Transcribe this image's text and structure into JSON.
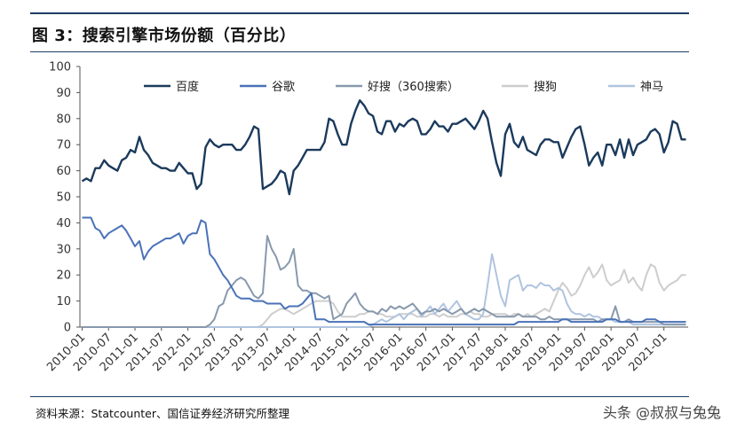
{
  "figure": {
    "title": "图 3：搜索引擎市场份额（百分比）",
    "source": "资料来源：Statcounter、国信证券经济研究所整理",
    "watermark": "头条 @叔叔与兔兔"
  },
  "chart_data": {
    "type": "line",
    "ylim": [
      0,
      100
    ],
    "yticks": [
      0,
      10,
      20,
      30,
      40,
      50,
      60,
      70,
      80,
      90,
      100
    ],
    "x_start": "2010-01",
    "x_end": "2021-06",
    "xtick_labels": [
      "2010-01",
      "2010-07",
      "2011-01",
      "2011-07",
      "2012-01",
      "2012-07",
      "2013-01",
      "2013-07",
      "2014-01",
      "2014-07",
      "2015-01",
      "2015-07",
      "2016-01",
      "2016-07",
      "2017-01",
      "2017-07",
      "2018-01",
      "2018-07",
      "2019-01",
      "2019-07",
      "2020-01",
      "2020-07",
      "2021-01"
    ],
    "legend_position": "top",
    "grid": false,
    "series": [
      {
        "name": "百度",
        "color": "#1b3a5c",
        "values": [
          56,
          57,
          56,
          61,
          61,
          64,
          62,
          61,
          60,
          64,
          65,
          68,
          67,
          73,
          68,
          66,
          63,
          62,
          61,
          61,
          60,
          60,
          63,
          61,
          59,
          59,
          53,
          55,
          69,
          72,
          70,
          69,
          70,
          70,
          70,
          68,
          68,
          70,
          73,
          77,
          76,
          53,
          54,
          55,
          57,
          60,
          59,
          51,
          60,
          62,
          65,
          68,
          68,
          68,
          68,
          71,
          80,
          79,
          74,
          70,
          70,
          78,
          83,
          87,
          85,
          82,
          81,
          75,
          74,
          79,
          79,
          75,
          78,
          77,
          79,
          80,
          79,
          74,
          74,
          76,
          79,
          77,
          77,
          75,
          78,
          78,
          79,
          80,
          78,
          76,
          79,
          83,
          80,
          71,
          63,
          58,
          74,
          78,
          71,
          69,
          73,
          68,
          67,
          66,
          70,
          72,
          72,
          71,
          71,
          65,
          69,
          73,
          76,
          77,
          70,
          62,
          65,
          67,
          62,
          70,
          70,
          66,
          72,
          65,
          72,
          66,
          70,
          71,
          72,
          75,
          76,
          74,
          67,
          71,
          79,
          78,
          72,
          72
        ]
      },
      {
        "name": "谷歌",
        "color": "#4a72b8",
        "values": [
          42,
          42,
          42,
          38,
          37,
          34,
          36,
          37,
          38,
          39,
          37,
          34,
          31,
          33,
          26,
          29,
          31,
          32,
          33,
          34,
          34,
          35,
          36,
          32,
          35,
          36,
          36,
          41,
          40,
          28,
          26,
          23,
          20,
          18,
          15,
          12,
          11,
          11,
          11,
          10,
          10,
          10,
          9,
          9,
          9,
          9,
          7,
          8,
          8,
          8,
          9,
          11,
          13,
          3,
          3,
          3,
          2,
          2,
          2,
          2,
          2,
          2,
          2,
          2,
          2,
          1,
          1,
          1,
          1,
          1,
          1,
          1,
          1,
          1,
          1,
          1,
          1,
          1,
          1,
          1,
          1,
          1,
          1,
          1,
          1,
          1,
          1,
          1,
          1,
          1,
          1,
          1,
          1,
          1,
          1,
          1,
          1,
          1,
          1,
          2,
          2,
          2,
          2,
          2,
          2,
          2,
          2,
          2,
          2,
          3,
          3,
          2,
          2,
          2,
          2,
          2,
          2,
          2,
          2,
          3,
          3,
          3,
          2,
          2,
          2,
          2,
          2,
          2,
          3,
          3,
          3,
          2,
          2,
          2,
          2,
          2,
          2,
          2
        ]
      },
      {
        "name": "好搜（360搜索）",
        "color": "#8899ad",
        "values": [
          0,
          0,
          0,
          0,
          0,
          0,
          0,
          0,
          0,
          0,
          0,
          0,
          0,
          0,
          0,
          0,
          0,
          0,
          0,
          0,
          0,
          0,
          0,
          0,
          0,
          0,
          0,
          0,
          0,
          1,
          3,
          8,
          9,
          14,
          16,
          18,
          19,
          18,
          15,
          12,
          11,
          13,
          35,
          30,
          27,
          22,
          23,
          25,
          30,
          16,
          14,
          14,
          13,
          13,
          12,
          11,
          12,
          3,
          4,
          5,
          9,
          11,
          13,
          9,
          7,
          6,
          6,
          5,
          7,
          6,
          8,
          7,
          8,
          7,
          8,
          9,
          7,
          5,
          6,
          6,
          7,
          6,
          7,
          6,
          5,
          6,
          7,
          5,
          6,
          7,
          6,
          7,
          6,
          5,
          4,
          4,
          4,
          4,
          4,
          5,
          4,
          4,
          4,
          4,
          3,
          3,
          4,
          3,
          3,
          3,
          3,
          3,
          3,
          3,
          3,
          3,
          3,
          2,
          3,
          3,
          3,
          8,
          2,
          2,
          3,
          2,
          2,
          2,
          2,
          2,
          2,
          2,
          1,
          1,
          1,
          1,
          1,
          1
        ]
      },
      {
        "name": "搜狗",
        "color": "#cdcdcd",
        "values": [
          0,
          0,
          0,
          0,
          0,
          0,
          0,
          0,
          0,
          0,
          0,
          0,
          0,
          0,
          0,
          0,
          0,
          0,
          0,
          0,
          0,
          0,
          0,
          0,
          0,
          0,
          0,
          0,
          0,
          0,
          0,
          0,
          0,
          0,
          0,
          0,
          0,
          0,
          0,
          0,
          0,
          1,
          3,
          5,
          6,
          7,
          7,
          6,
          5,
          6,
          7,
          8,
          9,
          10,
          10,
          10,
          10,
          9,
          6,
          4,
          4,
          4,
          4,
          5,
          5,
          6,
          6,
          5,
          5,
          4,
          4,
          4,
          5,
          5,
          5,
          5,
          4,
          4,
          4,
          5,
          5,
          4,
          5,
          4,
          4,
          4,
          5,
          5,
          6,
          5,
          5,
          4,
          4,
          5,
          5,
          5,
          5,
          4,
          5,
          5,
          4,
          5,
          4,
          5,
          6,
          7,
          6,
          10,
          14,
          17,
          15,
          12,
          13,
          16,
          20,
          23,
          19,
          21,
          24,
          18,
          16,
          17,
          18,
          22,
          17,
          19,
          16,
          14,
          20,
          24,
          23,
          17,
          14,
          16,
          17,
          18,
          20,
          20
        ]
      },
      {
        "name": "神马",
        "color": "#b0c4e0",
        "values": [
          0,
          0,
          0,
          0,
          0,
          0,
          0,
          0,
          0,
          0,
          0,
          0,
          0,
          0,
          0,
          0,
          0,
          0,
          0,
          0,
          0,
          0,
          0,
          0,
          0,
          0,
          0,
          0,
          0,
          0,
          0,
          0,
          0,
          0,
          0,
          0,
          0,
          0,
          0,
          0,
          0,
          0,
          0,
          0,
          0,
          0,
          0,
          0,
          0,
          0,
          0,
          0,
          0,
          0,
          0,
          0,
          0,
          0,
          0,
          0,
          0,
          0,
          0,
          0,
          0,
          0,
          1,
          2,
          3,
          2,
          3,
          4,
          5,
          3,
          5,
          6,
          7,
          4,
          6,
          8,
          5,
          7,
          9,
          6,
          8,
          10,
          7,
          5,
          4,
          3,
          3,
          5,
          16,
          28,
          20,
          12,
          8,
          18,
          19,
          20,
          14,
          16,
          16,
          15,
          17,
          16,
          16,
          14,
          15,
          14,
          9,
          6,
          5,
          5,
          4,
          5,
          4,
          4,
          3,
          3,
          3,
          2,
          2,
          2,
          2,
          1,
          1,
          1,
          1,
          1,
          1,
          1,
          1,
          1,
          1,
          1,
          1,
          1
        ]
      }
    ]
  }
}
